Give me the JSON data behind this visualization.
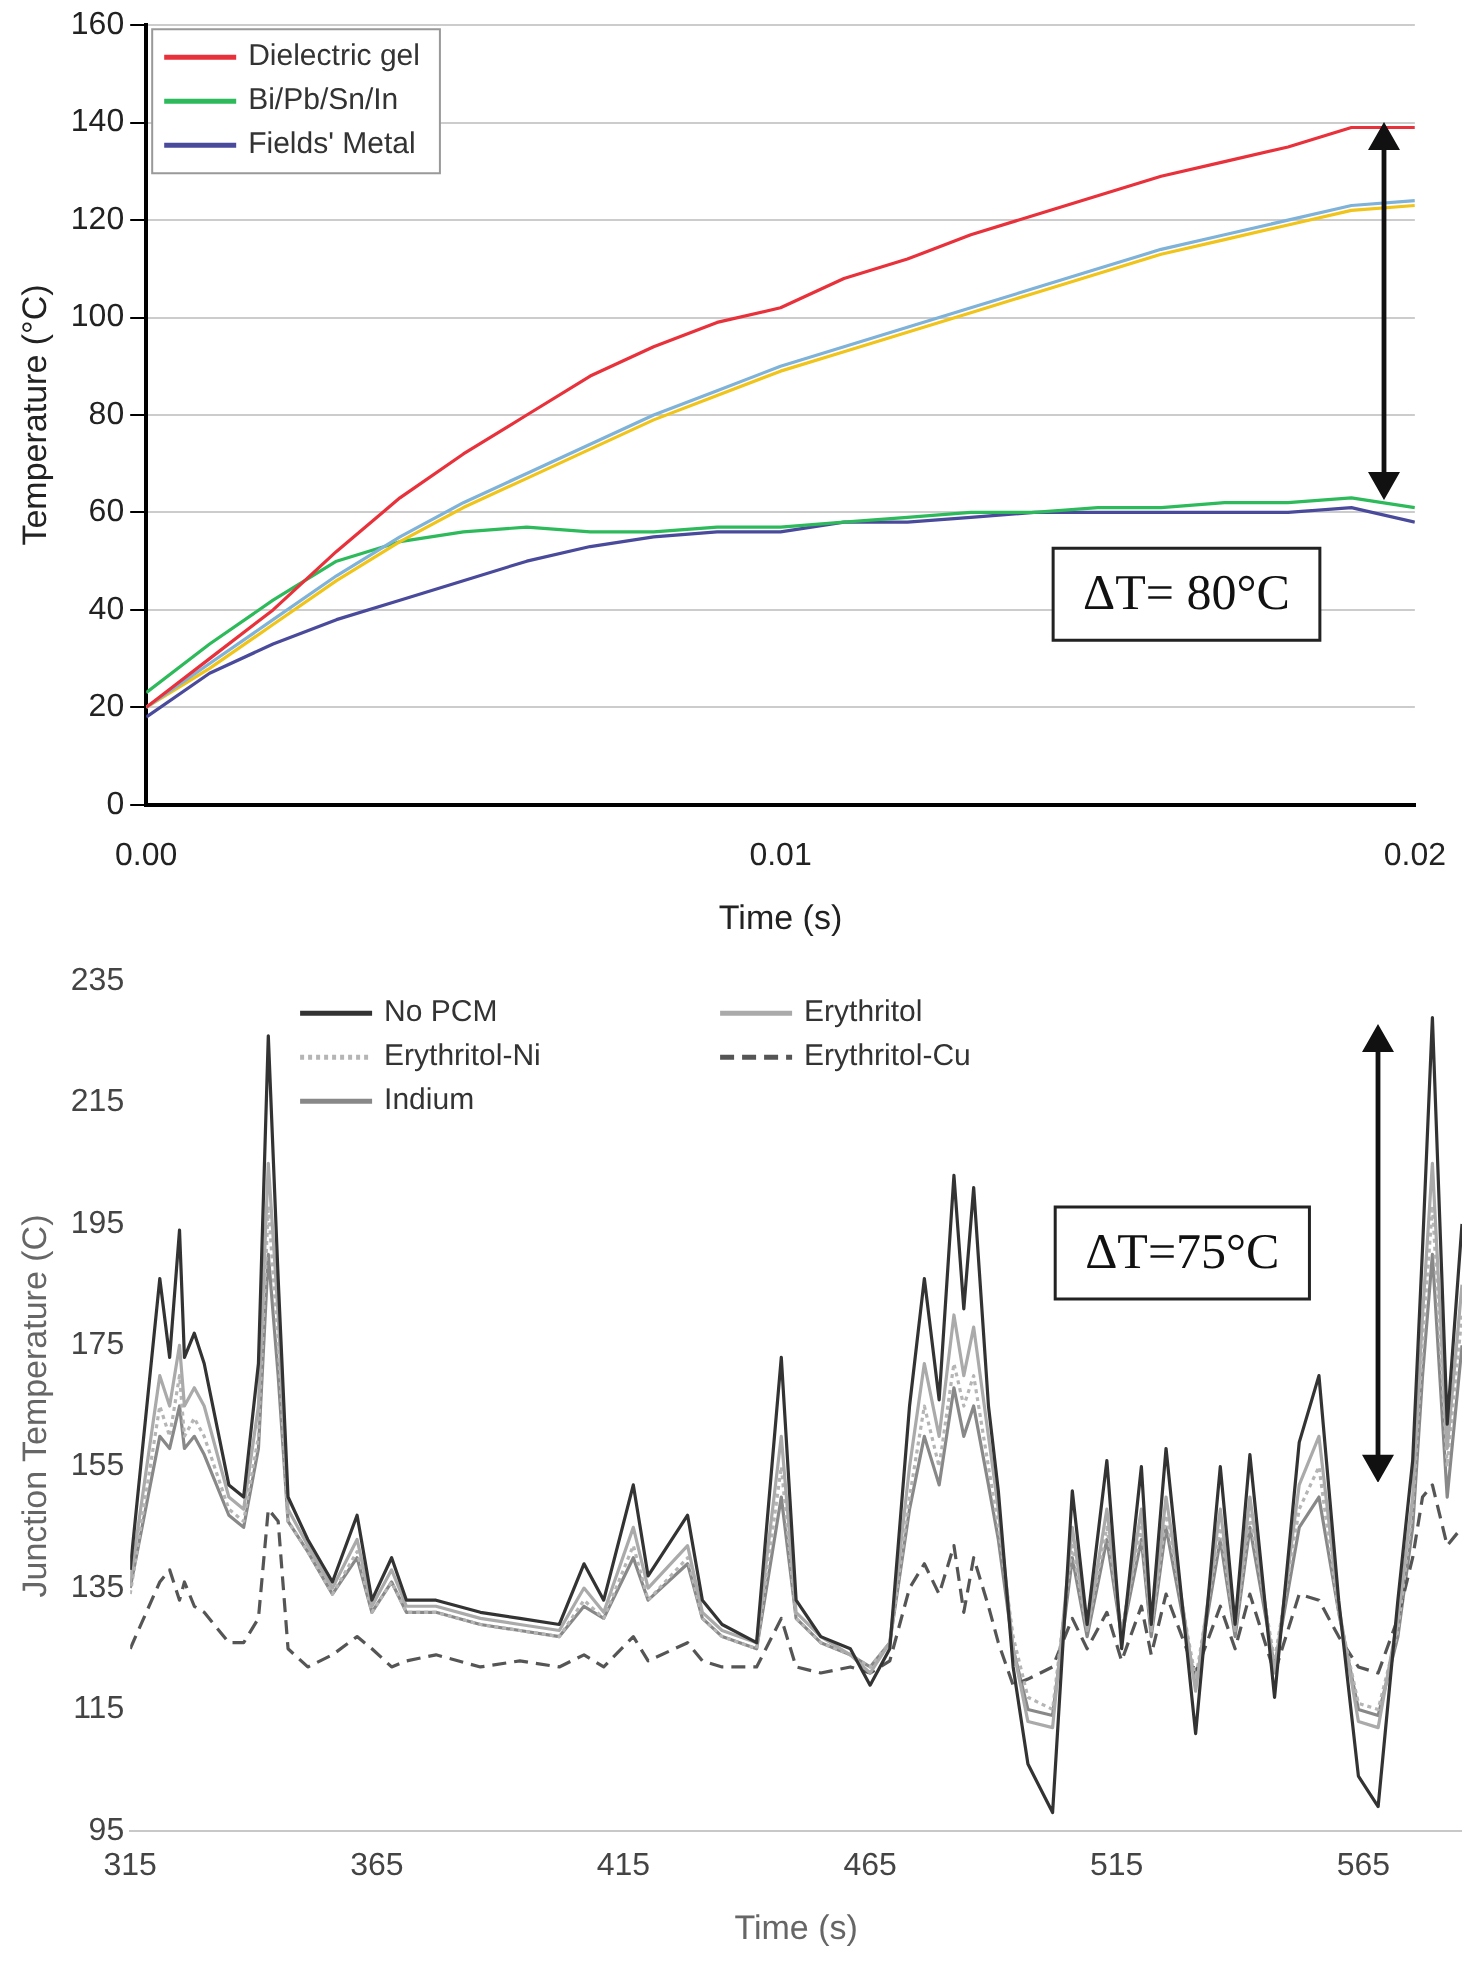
{
  "chart_data": [
    {
      "type": "line",
      "xlabel": "Time (s)",
      "ylabel": "Temperature (°C)",
      "xlim": [
        0,
        0.02
      ],
      "xticks": [
        {
          "value": 0,
          "label": "0.00"
        },
        {
          "value": 0.01,
          "label": "0.01"
        },
        {
          "value": 0.02,
          "label": "0.02"
        }
      ],
      "ylim": [
        0,
        160
      ],
      "yticks": [
        0,
        20,
        40,
        60,
        80,
        100,
        120,
        140,
        160
      ],
      "grid": "y",
      "legend": "top left",
      "marker": "none",
      "annotations": [
        "ΔT= 80°C"
      ],
      "x": [
        0,
        0.001,
        0.002,
        0.003,
        0.004,
        0.005,
        0.006,
        0.007,
        0.008,
        0.009,
        0.01,
        0.011,
        0.012,
        0.013,
        0.014,
        0.015,
        0.016,
        0.017,
        0.018,
        0.019,
        0.02
      ],
      "series": [
        {
          "name": "Dielectric gel",
          "color": "#e8313a",
          "values": [
            20,
            30,
            40,
            52,
            63,
            72,
            80,
            88,
            94,
            99,
            102,
            108,
            112,
            117,
            121,
            125,
            129,
            132,
            135,
            139,
            139
          ]
        },
        {
          "color": "#7fb2d8",
          "values": [
            20,
            29,
            38,
            47,
            55,
            62,
            68,
            74,
            80,
            85,
            90,
            94,
            98,
            102,
            106,
            110,
            114,
            117,
            120,
            123,
            124
          ]
        },
        {
          "color": "#f0c419",
          "values": [
            20,
            28,
            37,
            46,
            54,
            61,
            67,
            73,
            79,
            84,
            89,
            93,
            97,
            101,
            105,
            109,
            113,
            116,
            119,
            122,
            123
          ]
        },
        {
          "name": "Bi/Pb/Sn/In",
          "color": "#2dba5a",
          "values": [
            23,
            33,
            42,
            50,
            54,
            56,
            57,
            56,
            56,
            57,
            57,
            58,
            59,
            60,
            60,
            61,
            61,
            62,
            62,
            63,
            61
          ]
        },
        {
          "name": "Fields' Metal",
          "color": "#4a4a9c",
          "values": [
            18,
            27,
            33,
            38,
            42,
            46,
            50,
            53,
            55,
            56,
            56,
            58,
            58,
            59,
            60,
            60,
            60,
            60,
            60,
            61,
            58
          ]
        }
      ]
    },
    {
      "type": "line",
      "xlabel": "Time (s)",
      "ylabel": "Junction Temperature (C)",
      "xlim": [
        315,
        585
      ],
      "xticks": [
        315,
        365,
        415,
        465,
        515,
        565
      ],
      "ylim": [
        95,
        235
      ],
      "yticks": [
        95,
        115,
        135,
        155,
        175,
        195,
        215,
        235
      ],
      "grid": false,
      "legend": "top",
      "marker": "none",
      "annotations": [
        "ΔT=75°C"
      ],
      "x": [
        315,
        321,
        323,
        325,
        326,
        328,
        330,
        335,
        338,
        341,
        343,
        345,
        347,
        351,
        356,
        361,
        364,
        368,
        371,
        377,
        386,
        394,
        402,
        407,
        411,
        417,
        420,
        428,
        431,
        435,
        442,
        447,
        450,
        455,
        461,
        465,
        469,
        473,
        476,
        479,
        482,
        484,
        486,
        489,
        491,
        494,
        497,
        502,
        506,
        509,
        513,
        516,
        520,
        522,
        525,
        531,
        536,
        539,
        542,
        547,
        552,
        556,
        560,
        564,
        568,
        572,
        575,
        577,
        579,
        582,
        585
      ],
      "series": [
        {
          "name": "No PCM",
          "color": "#333333",
          "line_style": "solid",
          "values": [
            138,
            186,
            173,
            194,
            173,
            177,
            172,
            152,
            150,
            172,
            226,
            186,
            150,
            143,
            136,
            147,
            133,
            140,
            133,
            133,
            131,
            130,
            129,
            139,
            133,
            152,
            137,
            147,
            133,
            129,
            126,
            173,
            133,
            127,
            125,
            119,
            125,
            165,
            186,
            166,
            203,
            181,
            201,
            165,
            151,
            122,
            106,
            98,
            151,
            129,
            156,
            125,
            155,
            129,
            158,
            111,
            155,
            129,
            157,
            117,
            159,
            170,
            133,
            104,
            99,
            133,
            156,
            191,
            229,
            162,
            195
          ]
        },
        {
          "name": "Erythritol",
          "color": "#aaaaaa",
          "line_style": "solid",
          "values": [
            136,
            170,
            165,
            175,
            165,
            168,
            165,
            150,
            148,
            165,
            205,
            180,
            148,
            142,
            135,
            143,
            132,
            138,
            132,
            132,
            130,
            129,
            128,
            135,
            131,
            145,
            135,
            142,
            131,
            128,
            126,
            160,
            131,
            127,
            124,
            121,
            126,
            155,
            172,
            160,
            180,
            170,
            178,
            160,
            148,
            125,
            113,
            112,
            145,
            128,
            148,
            127,
            148,
            128,
            150,
            118,
            148,
            128,
            150,
            121,
            152,
            160,
            132,
            113,
            112,
            130,
            150,
            180,
            205,
            158,
            185
          ]
        },
        {
          "name": "Erythritol-Ni",
          "color": "#b5b5b5",
          "line_style": "dotted",
          "values": [
            134,
            165,
            160,
            170,
            160,
            163,
            160,
            148,
            146,
            160,
            198,
            175,
            146,
            141,
            134,
            141,
            131,
            136,
            131,
            131,
            129,
            128,
            127,
            133,
            130,
            142,
            133,
            140,
            130,
            127,
            125,
            155,
            130,
            126,
            124,
            122,
            126,
            150,
            165,
            155,
            172,
            165,
            170,
            155,
            145,
            127,
            117,
            115,
            142,
            128,
            145,
            128,
            145,
            128,
            147,
            120,
            145,
            128,
            147,
            123,
            148,
            155,
            131,
            116,
            115,
            128,
            148,
            175,
            198,
            155,
            180
          ]
        },
        {
          "name": "Erythritol-Cu",
          "color": "#555555",
          "line_style": "dashed",
          "values": [
            125,
            136,
            138,
            133,
            136,
            132,
            131,
            126,
            126,
            130,
            148,
            146,
            125,
            122,
            124,
            127,
            125,
            122,
            123,
            124,
            122,
            123,
            122,
            124,
            122,
            127,
            123,
            126,
            123,
            122,
            122,
            130,
            122,
            121,
            122,
            121,
            123,
            135,
            139,
            134,
            142,
            131,
            140,
            132,
            126,
            119,
            120,
            122,
            130,
            125,
            131,
            123,
            132,
            124,
            134,
            121,
            132,
            125,
            134,
            121,
            134,
            133,
            127,
            122,
            121,
            130,
            140,
            150,
            152,
            142,
            145
          ]
        },
        {
          "name": "Indium",
          "color": "#888888",
          "line_style": "solid",
          "values": [
            135,
            160,
            158,
            165,
            158,
            160,
            157,
            147,
            145,
            158,
            190,
            170,
            146,
            141,
            134,
            140,
            131,
            136,
            131,
            131,
            129,
            128,
            127,
            132,
            130,
            140,
            133,
            139,
            130,
            127,
            125,
            150,
            130,
            126,
            124,
            122,
            126,
            148,
            160,
            152,
            168,
            160,
            165,
            152,
            143,
            125,
            115,
            114,
            140,
            127,
            143,
            127,
            143,
            127,
            145,
            119,
            143,
            127,
            145,
            122,
            145,
            150,
            131,
            115,
            114,
            127,
            145,
            170,
            190,
            150,
            175
          ]
        }
      ]
    }
  ]
}
